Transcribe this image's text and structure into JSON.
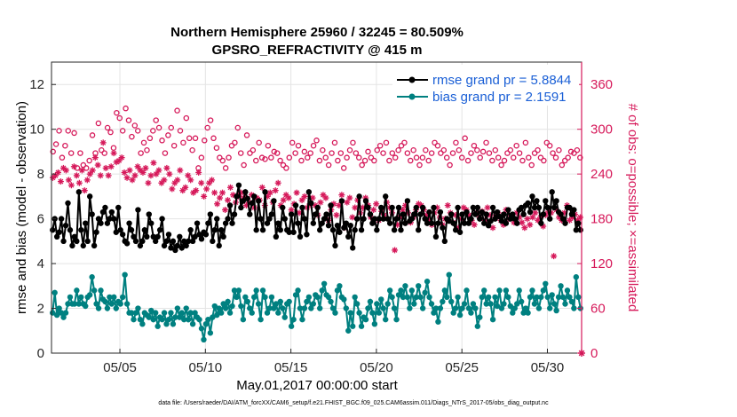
{
  "chart_data": {
    "type": "line",
    "title": "Northern Hemisphere 25960 / 32245 = 80.509%",
    "subtitle": "GPSRO_REFRACTIVITY @ 415 m",
    "xlabel": "May.01,2017 00:00:00 start",
    "ylabel": "rmse and bias (model - observation)",
    "y2label": "# of obs: o=possible; ×=assimilated",
    "footnote": "data file: /Users/raeder/DAI/ATM_forcXX/CAM6_setup/f.e21.FHIST_BGC.f09_025.CAM6assim.011/Diags_NTrS_2017-05/obs_diag_output.nc",
    "xlim": [
      1.0,
      32.0
    ],
    "ylim": [
      0,
      13
    ],
    "y2lim": [
      0,
      390
    ],
    "x_ticks": [
      5,
      10,
      15,
      20,
      25,
      30
    ],
    "x_tick_labels": [
      "05/05",
      "05/10",
      "05/15",
      "05/20",
      "05/25",
      "05/30"
    ],
    "y_ticks": [
      0,
      2,
      4,
      6,
      8,
      10,
      12
    ],
    "y2_ticks": [
      0,
      60,
      120,
      180,
      240,
      300,
      360
    ],
    "grid": true,
    "legend_position": "top-right",
    "colors": {
      "rmse": "#000000",
      "bias": "#008080",
      "obs": "#d6195a"
    },
    "series": [
      {
        "name": "rmse grand pr = 5.8844",
        "axis": "left",
        "color": "#000000",
        "marker": "filled-circle",
        "values": [
          5.5,
          6.0,
          5.2,
          5.4,
          6.0,
          5.0,
          5.7,
          6.7,
          5.5,
          4.8,
          5.2,
          5.0,
          7.2,
          5.5,
          4.8,
          5.8,
          5.0,
          7.0,
          6.2,
          4.8,
          5.4,
          6.0,
          5.8,
          6.3,
          6.5,
          5.8,
          6.0,
          6.3,
          6.0,
          5.4,
          6.5,
          5.5,
          5.3,
          5.0,
          4.9,
          5.8,
          5.5,
          5.2,
          5.0,
          6.4,
          4.8,
          5.0,
          5.5,
          5.2,
          6.2,
          5.8,
          5.2,
          5.0,
          5.2,
          5.5,
          6.0,
          4.8,
          5.0,
          5.3,
          4.7,
          5.0,
          4.6,
          4.8,
          5.2,
          4.7,
          5.0,
          4.8,
          5.0,
          5.5,
          5.0,
          5.2,
          5.8,
          5.3,
          5.1,
          5.4,
          5.3,
          5.8,
          6.2,
          5.0,
          5.5,
          6.0,
          4.8,
          5.5,
          5.2,
          5.8,
          6.0,
          6.6,
          5.8,
          6.2,
          7.0,
          7.5,
          6.5,
          6.8,
          7.2,
          6.9,
          6.2,
          6.7,
          7.0,
          5.5,
          6.8,
          6.0,
          5.5,
          7.2,
          5.8,
          6.0,
          6.2,
          6.8,
          5.2,
          5.8,
          5.5,
          6.5,
          6.0,
          5.5,
          5.4,
          6.2,
          5.4,
          6.6,
          5.8,
          5.2,
          6.5,
          6.0,
          5.3,
          7.2,
          6.7,
          5.8,
          6.2,
          6.5,
          5.5,
          5.8,
          6.0,
          6.2,
          5.7,
          6.6,
          5.5,
          4.8,
          5.7,
          5.4,
          6.8,
          5.6,
          5.8,
          5.2,
          5.7,
          4.7,
          5.5,
          6.0,
          7.0,
          5.5,
          6.0,
          6.8,
          6.5,
          6.2,
          5.8,
          6.0,
          5.5,
          6.0,
          6.5,
          6.0,
          7.0,
          6.0,
          5.8,
          6.5,
          5.5,
          6.0,
          6.5,
          5.5,
          6.2,
          5.8,
          6.8,
          5.9,
          6.0,
          6.2,
          6.5,
          5.5,
          6.2,
          6.5,
          6.0,
          5.8,
          6.3,
          5.8,
          6.5,
          5.2,
          5.8,
          6.3,
          5.6,
          5.0,
          6.0,
          5.9,
          6.2,
          5.8,
          5.5,
          6.5,
          5.4,
          6.2,
          5.8,
          6.3,
          5.8,
          6.0,
          6.5,
          6.2,
          6.5,
          6.0,
          6.3,
          5.8,
          6.2,
          5.7,
          5.9,
          6.5,
          6.0,
          6.3,
          6.1,
          5.9,
          6.2,
          5.8,
          6.4,
          6.0,
          6.2,
          6.0,
          5.8,
          6.4,
          6.5,
          6.2,
          6.6,
          6.7,
          6.3,
          7.0,
          6.5,
          6.8,
          6.5,
          5.8,
          6.2,
          6.8,
          6.5,
          6.0,
          7.2,
          6.5,
          6.8,
          6.3,
          6.2,
          6.0,
          5.8,
          6.5,
          6.5,
          6.2,
          6.4,
          5.5,
          5.8,
          5.5
        ]
      },
      {
        "name": "bias grand pr = 2.1591",
        "axis": "left",
        "color": "#008080",
        "marker": "filled-circle",
        "values": [
          1.8,
          2.7,
          1.7,
          2.0,
          1.8,
          1.6,
          1.8,
          2.2,
          2.5,
          2.2,
          2.2,
          2.8,
          2.2,
          2.5,
          2.2,
          2.1,
          2.5,
          2.6,
          3.4,
          2.8,
          2.2,
          2.0,
          2.8,
          2.4,
          2.3,
          2.0,
          2.5,
          2.2,
          2.5,
          2.0,
          2.3,
          2.2,
          2.5,
          3.5,
          2.2,
          1.8,
          1.8,
          1.5,
          1.8,
          2.0,
          1.5,
          1.3,
          1.8,
          1.7,
          1.6,
          1.9,
          1.5,
          1.8,
          1.2,
          1.6,
          1.5,
          1.8,
          1.3,
          1.5,
          1.8,
          1.3,
          1.6,
          2.0,
          1.6,
          1.8,
          1.5,
          2.0,
          1.5,
          1.8,
          1.3,
          1.8,
          1.6,
          1.5,
          1.1,
          0.6,
          1.3,
          1.5,
          0.9,
          1.6,
          2.1,
          1.7,
          2.0,
          1.8,
          2.2,
          2.0,
          2.3,
          1.8,
          2.1,
          2.8,
          2.5,
          2.8,
          2.1,
          1.5,
          2.5,
          2.3,
          2.0,
          1.8,
          2.5,
          2.8,
          2.2,
          1.5,
          2.8,
          2.5,
          1.8,
          2.0,
          2.5,
          2.0,
          2.2,
          1.8,
          2.3,
          2.0,
          1.6,
          2.2,
          2.3,
          1.2,
          1.5,
          2.6,
          2.8,
          2.0,
          1.5,
          2.0,
          2.3,
          2.5,
          2.0,
          2.2,
          2.6,
          2.5,
          2.0,
          2.8,
          3.1,
          2.6,
          2.5,
          2.3,
          2.0,
          1.8,
          2.8,
          3.0,
          2.5,
          2.4,
          2.0,
          1.0,
          1.8,
          1.2,
          2.5,
          2.2,
          1.8,
          1.2,
          1.6,
          1.5,
          2.0,
          2.3,
          1.8,
          1.3,
          2.2,
          1.8,
          2.4,
          2.0,
          1.5,
          2.2,
          2.8,
          2.5,
          2.0,
          1.5,
          2.6,
          2.8,
          2.5,
          3.0,
          2.5,
          2.0,
          2.8,
          2.2,
          2.5,
          3.0,
          2.5,
          2.0,
          2.7,
          3.2,
          2.5,
          2.2,
          1.8,
          2.0,
          1.4,
          2.0,
          2.3,
          2.8,
          2.5,
          3.5,
          2.3,
          1.8,
          2.0,
          2.5,
          1.7,
          2.0,
          2.2,
          2.8,
          2.0,
          1.8,
          2.2,
          2.0,
          1.2,
          1.6,
          2.5,
          2.8,
          2.2,
          2.5,
          2.2,
          1.5,
          2.5,
          2.1,
          2.8,
          2.0,
          2.2,
          2.8,
          2.5,
          2.1,
          1.8,
          2.0,
          2.2,
          2.8,
          2.3,
          1.8,
          2.0,
          1.8,
          2.5,
          2.8,
          2.2,
          2.5,
          2.0,
          2.5,
          2.8,
          3.1,
          2.5,
          2.0,
          2.6,
          2.2,
          1.9,
          2.5,
          3.0,
          2.5,
          2.2,
          2.8,
          2.5,
          2.3,
          2.0,
          3.4,
          2.5,
          2.0
        ]
      },
      {
        "name": "possible",
        "axis": "right",
        "color": "#d6195a",
        "marker": "open-circle",
        "values": [
          270,
          280,
          298,
          262,
          278,
          298,
          268,
          295,
          248,
          268,
          252,
          248,
          258,
          292,
          268,
          308,
          272,
          268,
          302,
          296,
          275,
          322,
          315,
          298,
          328,
          312,
          290,
          305,
          298,
          268,
          282,
          272,
          288,
          298,
          312,
          302,
          285,
          268,
          292,
          302,
          278,
          325,
          298,
          282,
          315,
          288,
          272,
          288,
          248,
          262,
          285,
          302,
          312,
          288,
          275,
          262,
          258,
          248,
          262,
          278,
          282,
          302,
          268,
          252,
          292,
          268,
          272,
          258,
          282,
          262,
          260,
          278,
          262,
          270,
          268,
          258,
          252,
          248,
          262,
          282,
          268,
          278,
          258,
          270,
          262,
          268,
          278,
          285,
          258,
          272,
          262,
          252,
          268,
          282,
          258,
          268,
          248,
          262,
          272,
          282,
          268,
          262,
          252,
          258,
          270,
          262,
          258,
          272,
          278,
          268,
          282,
          258,
          268,
          262,
          272,
          278,
          282,
          268,
          258,
          272,
          262,
          252,
          262,
          272,
          258,
          268,
          282,
          278,
          268,
          272,
          262,
          252,
          268,
          282,
          272,
          262,
          288,
          258,
          268,
          278,
          272,
          262,
          270,
          282,
          268,
          258,
          272,
          262,
          252,
          258,
          268,
          272,
          262,
          278,
          268,
          258,
          282,
          262,
          252,
          268,
          272,
          262,
          258,
          282,
          278,
          268,
          262,
          272,
          252,
          258,
          262,
          270,
          268,
          272,
          262
        ]
      },
      {
        "name": "assimilated",
        "axis": "right",
        "color": "#d6195a",
        "marker": "asterisk",
        "values": [
          235,
          238,
          242,
          230,
          248,
          245,
          232,
          225,
          250,
          238,
          228,
          245,
          218,
          232,
          240,
          245,
          262,
          252,
          238,
          282,
          248,
          238,
          250,
          268,
          256,
          258,
          262,
          242,
          235,
          245,
          232,
          238,
          250,
          245,
          242,
          248,
          228,
          238,
          255,
          240,
          245,
          228,
          232,
          248,
          240,
          220,
          228,
          232,
          245,
          218,
          222,
          238,
          232,
          215,
          218,
          242,
          228,
          210,
          220,
          228,
          232,
          215,
          200,
          208,
          215,
          192,
          205,
          222,
          212,
          202,
          210,
          215,
          208,
          198,
          202,
          212,
          195,
          208,
          205,
          222,
          198,
          210,
          215,
          202,
          218,
          228,
          198,
          205,
          212,
          208,
          192,
          200,
          215,
          188,
          205,
          210,
          195,
          200,
          208,
          198,
          185,
          202,
          212,
          208,
          178,
          192,
          200,
          185,
          198,
          212,
          168,
          202,
          208,
          182,
          195,
          205,
          188,
          195,
          208,
          198,
          182,
          192,
          200,
          178,
          190,
          185,
          202,
          195,
          188,
          138,
          172,
          182,
          192,
          198,
          188,
          175,
          182,
          192,
          200,
          198,
          192,
          185,
          178,
          172,
          188,
          195,
          182,
          172,
          180,
          198,
          188,
          175,
          185,
          168,
          180,
          195,
          192,
          185,
          178,
          172,
          188,
          182,
          190,
          178,
          195,
          185,
          168,
          182,
          188,
          178,
          172,
          192,
          180,
          185,
          175,
          188,
          182,
          175,
          168,
          180,
          172,
          182,
          188,
          178,
          182,
          170,
          185,
          190,
          188,
          130,
          192,
          182,
          178,
          188,
          198,
          178,
          182,
          186,
          178,
          182
        ]
      }
    ]
  }
}
